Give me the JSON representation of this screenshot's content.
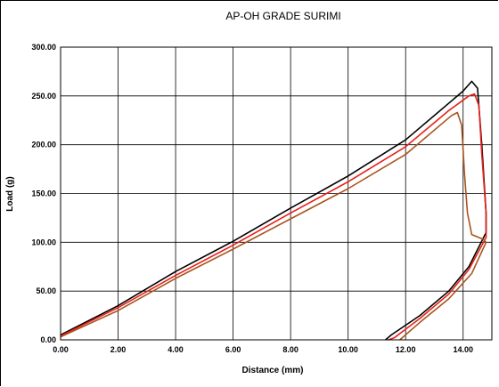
{
  "chart_data": {
    "type": "line",
    "title": "AP-OH GRADE SURIMI",
    "xlabel": "Distance (mm)",
    "ylabel": "Load (g)",
    "xlim": [
      0,
      15
    ],
    "ylim": [
      0,
      300
    ],
    "grid": true,
    "x_ticks": [
      0,
      2,
      4,
      6,
      8,
      10,
      12,
      14
    ],
    "x_tick_labels": [
      "0.00",
      "2.00",
      "4.00",
      "6.00",
      "8.00",
      "10.00",
      "12.00",
      "14.00"
    ],
    "y_ticks": [
      0,
      50,
      100,
      150,
      200,
      250,
      300
    ],
    "y_tick_labels": [
      "0.00",
      "50.00",
      "100.00",
      "150.00",
      "200.00",
      "250.00",
      "300.00"
    ],
    "series": [
      {
        "color": "#000000",
        "points": [
          [
            0,
            5
          ],
          [
            2,
            35
          ],
          [
            4,
            70
          ],
          [
            6,
            101
          ],
          [
            8,
            135
          ],
          [
            10,
            168
          ],
          [
            12,
            205
          ],
          [
            14,
            255
          ],
          [
            14.3,
            265
          ],
          [
            14.5,
            258
          ],
          [
            14.65,
            200
          ],
          [
            14.8,
            130
          ],
          [
            14.8,
            110
          ],
          [
            14.2,
            75
          ],
          [
            13.5,
            50
          ],
          [
            12.5,
            25
          ],
          [
            11.5,
            5
          ],
          [
            11.3,
            0
          ]
        ]
      },
      {
        "color": "#e8201a",
        "points": [
          [
            0,
            4
          ],
          [
            2,
            33
          ],
          [
            4,
            66
          ],
          [
            6,
            97
          ],
          [
            8,
            130
          ],
          [
            10,
            162
          ],
          [
            12,
            198
          ],
          [
            13.5,
            235
          ],
          [
            14.2,
            250
          ],
          [
            14.4,
            252
          ],
          [
            14.55,
            240
          ],
          [
            14.65,
            190
          ],
          [
            14.8,
            130
          ],
          [
            14.8,
            105
          ],
          [
            14.2,
            72
          ],
          [
            13.5,
            47
          ],
          [
            12.5,
            22
          ],
          [
            11.6,
            2
          ],
          [
            11.4,
            0
          ]
        ]
      },
      {
        "color": "#a8541e",
        "points": [
          [
            0,
            3
          ],
          [
            2,
            30
          ],
          [
            4,
            63
          ],
          [
            6,
            93
          ],
          [
            8,
            124
          ],
          [
            10,
            155
          ],
          [
            12,
            190
          ],
          [
            13.6,
            230
          ],
          [
            13.8,
            233
          ],
          [
            13.95,
            220
          ],
          [
            14.05,
            170
          ],
          [
            14.15,
            130
          ],
          [
            14.3,
            108
          ],
          [
            14.7,
            103
          ],
          [
            14.8,
            100
          ],
          [
            14.3,
            68
          ],
          [
            13.5,
            42
          ],
          [
            12.5,
            18
          ],
          [
            11.8,
            0
          ]
        ]
      }
    ]
  }
}
